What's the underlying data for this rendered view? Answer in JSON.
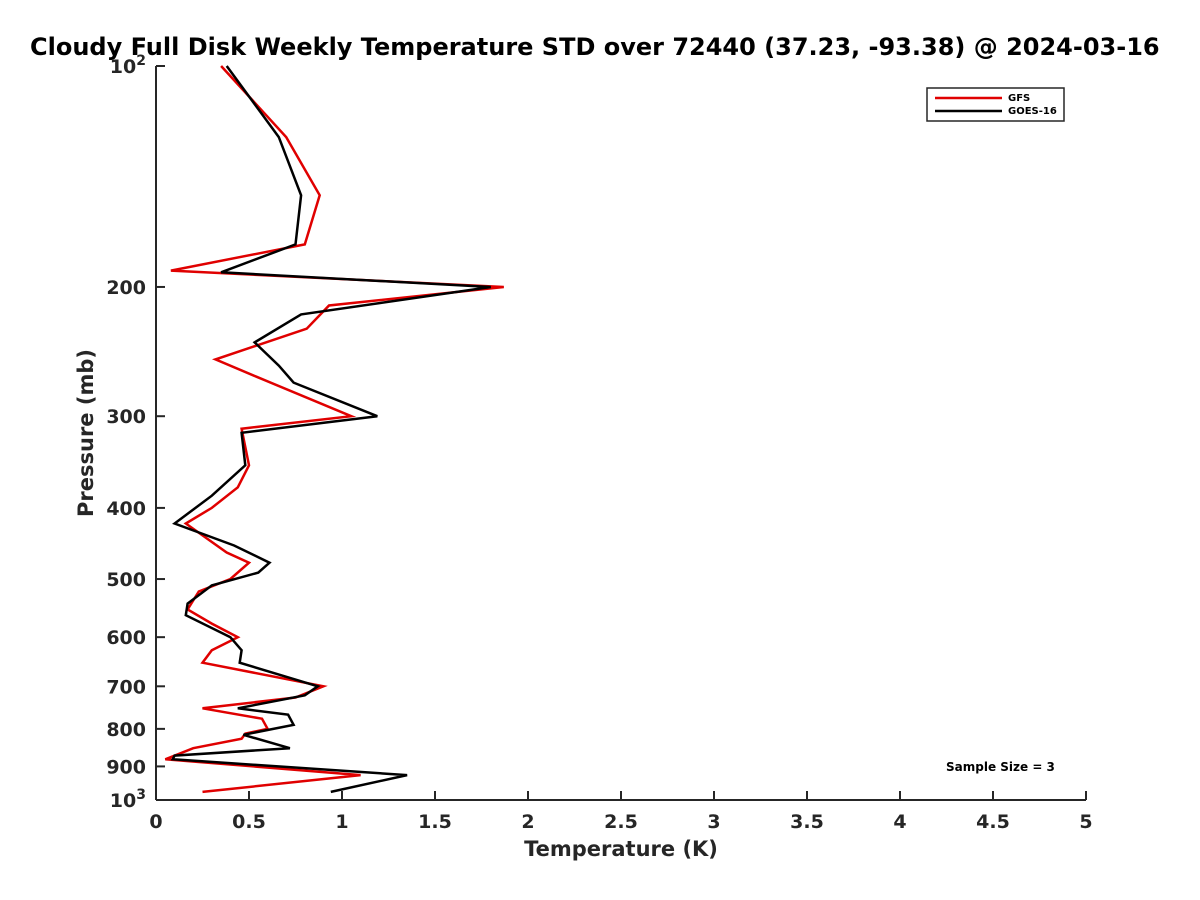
{
  "chart_data": {
    "type": "line",
    "title": "Cloudy Full Disk Weekly Temperature STD over 72440 (37.23, -93.38) @ 2024-03-16",
    "xlabel": "Temperature (K)",
    "ylabel": "Pressure (mb)",
    "xlim": [
      0,
      5
    ],
    "ylim": [
      100,
      1000
    ],
    "y_scale": "log",
    "y_reversed": true,
    "x_ticks": [
      0,
      0.5,
      1,
      1.5,
      2,
      2.5,
      3,
      3.5,
      4,
      4.5,
      5
    ],
    "x_tick_labels": [
      "0",
      "0.5",
      "1",
      "1.5",
      "2",
      "2.5",
      "3",
      "3.5",
      "4",
      "4.5",
      "5"
    ],
    "y_ticks": [
      100,
      200,
      300,
      400,
      500,
      600,
      700,
      800,
      900,
      1000
    ],
    "y_tick_labels": [
      {
        "base": "10",
        "exp": "2"
      },
      {
        "base": "200",
        "exp": ""
      },
      {
        "base": "300",
        "exp": ""
      },
      {
        "base": "400",
        "exp": ""
      },
      {
        "base": "500",
        "exp": ""
      },
      {
        "base": "600",
        "exp": ""
      },
      {
        "base": "700",
        "exp": ""
      },
      {
        "base": "800",
        "exp": ""
      },
      {
        "base": "900",
        "exp": ""
      },
      {
        "base": "10",
        "exp": "3"
      }
    ],
    "grid": false,
    "legend_position": "top-right",
    "series": [
      {
        "name": "GFS",
        "color": "#e00000",
        "points": [
          [
            0.35,
            100
          ],
          [
            0.7,
            125
          ],
          [
            0.88,
            150
          ],
          [
            0.8,
            175
          ],
          [
            0.08,
            190
          ],
          [
            1.87,
            200
          ],
          [
            0.93,
            212
          ],
          [
            0.81,
            228
          ],
          [
            0.32,
            251
          ],
          [
            0.54,
            265
          ],
          [
            1.05,
            300
          ],
          [
            0.46,
            312
          ],
          [
            0.5,
            350
          ],
          [
            0.44,
            375
          ],
          [
            0.3,
            400
          ],
          [
            0.16,
            420
          ],
          [
            0.38,
            460
          ],
          [
            0.5,
            475
          ],
          [
            0.4,
            500
          ],
          [
            0.23,
            520
          ],
          [
            0.17,
            550
          ],
          [
            0.3,
            575
          ],
          [
            0.44,
            600
          ],
          [
            0.3,
            625
          ],
          [
            0.25,
            650
          ],
          [
            0.9,
            700
          ],
          [
            0.75,
            725
          ],
          [
            0.25,
            750
          ],
          [
            0.57,
            775
          ],
          [
            0.6,
            800
          ],
          [
            0.48,
            812
          ],
          [
            0.46,
            825
          ],
          [
            0.2,
            850
          ],
          [
            0.05,
            880
          ],
          [
            1.1,
            925
          ],
          [
            0.25,
            975
          ]
        ]
      },
      {
        "name": "GOES-16",
        "color": "#000000",
        "points": [
          [
            0.38,
            100
          ],
          [
            0.66,
            125
          ],
          [
            0.78,
            150
          ],
          [
            0.75,
            175
          ],
          [
            0.35,
            191
          ],
          [
            1.8,
            200
          ],
          [
            0.78,
            218
          ],
          [
            0.53,
            238
          ],
          [
            0.66,
            256
          ],
          [
            0.74,
            270
          ],
          [
            1.19,
            300
          ],
          [
            0.46,
            316
          ],
          [
            0.48,
            350
          ],
          [
            0.3,
            385
          ],
          [
            0.1,
            420
          ],
          [
            0.42,
            450
          ],
          [
            0.61,
            475
          ],
          [
            0.55,
            490
          ],
          [
            0.3,
            510
          ],
          [
            0.17,
            540
          ],
          [
            0.16,
            560
          ],
          [
            0.4,
            600
          ],
          [
            0.46,
            625
          ],
          [
            0.45,
            650
          ],
          [
            0.87,
            700
          ],
          [
            0.8,
            720
          ],
          [
            0.44,
            750
          ],
          [
            0.71,
            765
          ],
          [
            0.74,
            790
          ],
          [
            0.47,
            815
          ],
          [
            0.72,
            850
          ],
          [
            0.1,
            870
          ],
          [
            0.09,
            880
          ],
          [
            1.35,
            925
          ],
          [
            0.94,
            975
          ]
        ]
      }
    ],
    "annotation": "Sample Size = 3"
  }
}
